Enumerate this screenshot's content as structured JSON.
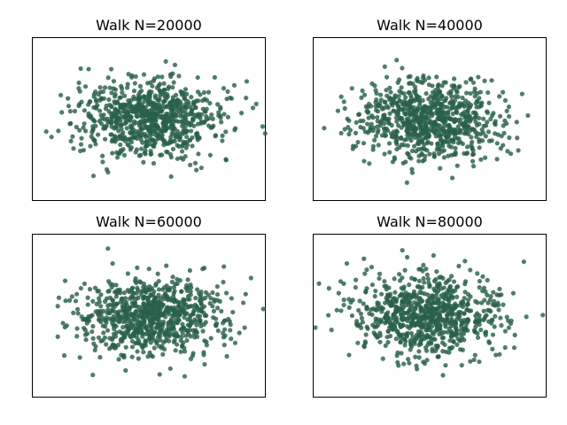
{
  "chart_data": [
    {
      "type": "scatter",
      "title": "Walk N=20000",
      "series": [
        {
          "color": "#2a6049",
          "points": [
            [
              -0.8,
              0.6
            ],
            [
              -0.6,
              0.2
            ],
            [
              -0.5,
              -0.4
            ],
            [
              -0.2,
              0.1
            ],
            [
              0.0,
              0.0
            ],
            [
              0.2,
              0.4
            ],
            [
              0.4,
              -0.1
            ],
            [
              0.6,
              0.3
            ],
            [
              0.8,
              -0.5
            ],
            [
              0.3,
              0.8
            ]
          ]
        }
      ],
      "point_count": 800,
      "seed": 20000,
      "x_spread": 1.0,
      "y_spread": 0.55,
      "xlim": [
        -3.2,
        3.2
      ],
      "ylim": [
        -2.3,
        2.3
      ],
      "axes_visible": false
    },
    {
      "type": "scatter",
      "title": "Walk N=40000",
      "series": [
        {
          "color": "#2a6049",
          "points": [
            [
              -0.7,
              0.5
            ],
            [
              -0.5,
              -0.2
            ],
            [
              -0.2,
              0.3
            ],
            [
              0.0,
              -0.1
            ],
            [
              0.1,
              0.6
            ],
            [
              0.3,
              -0.6
            ],
            [
              0.5,
              0.2
            ],
            [
              0.7,
              -0.3
            ],
            [
              0.9,
              0.4
            ],
            [
              -0.3,
              -0.7
            ]
          ]
        }
      ],
      "point_count": 800,
      "seed": 40000,
      "x_spread": 1.0,
      "y_spread": 0.55,
      "xlim": [
        -3.2,
        3.2
      ],
      "ylim": [
        -2.3,
        2.3
      ],
      "axes_visible": false
    },
    {
      "type": "scatter",
      "title": "Walk N=60000",
      "series": [
        {
          "color": "#2a6049",
          "points": [
            [
              -0.9,
              -0.3
            ],
            [
              -0.6,
              0.1
            ],
            [
              -0.3,
              -0.5
            ],
            [
              -0.1,
              0.2
            ],
            [
              0.1,
              -0.2
            ],
            [
              0.3,
              0.5
            ],
            [
              0.5,
              -0.4
            ],
            [
              0.7,
              0.1
            ],
            [
              0.9,
              -0.6
            ],
            [
              0.2,
              0.9
            ]
          ]
        }
      ],
      "point_count": 800,
      "seed": 60000,
      "x_spread": 1.0,
      "y_spread": 0.55,
      "xlim": [
        -3.2,
        3.2
      ],
      "ylim": [
        -2.3,
        2.3
      ],
      "axes_visible": false
    },
    {
      "type": "scatter",
      "title": "Walk N=80000",
      "series": [
        {
          "color": "#2a6049",
          "points": [
            [
              -0.8,
              0.2
            ],
            [
              -0.5,
              -0.5
            ],
            [
              -0.3,
              0.4
            ],
            [
              -0.1,
              -0.1
            ],
            [
              0.0,
              0.5
            ],
            [
              0.2,
              -0.3
            ],
            [
              0.4,
              0.3
            ],
            [
              0.6,
              -0.6
            ],
            [
              0.8,
              0.1
            ],
            [
              -0.2,
              0.8
            ]
          ]
        }
      ],
      "point_count": 800,
      "seed": 80000,
      "x_spread": 1.0,
      "y_spread": 0.55,
      "xlim": [
        -3.2,
        3.2
      ],
      "ylim": [
        -2.3,
        2.3
      ],
      "axes_visible": false
    }
  ]
}
